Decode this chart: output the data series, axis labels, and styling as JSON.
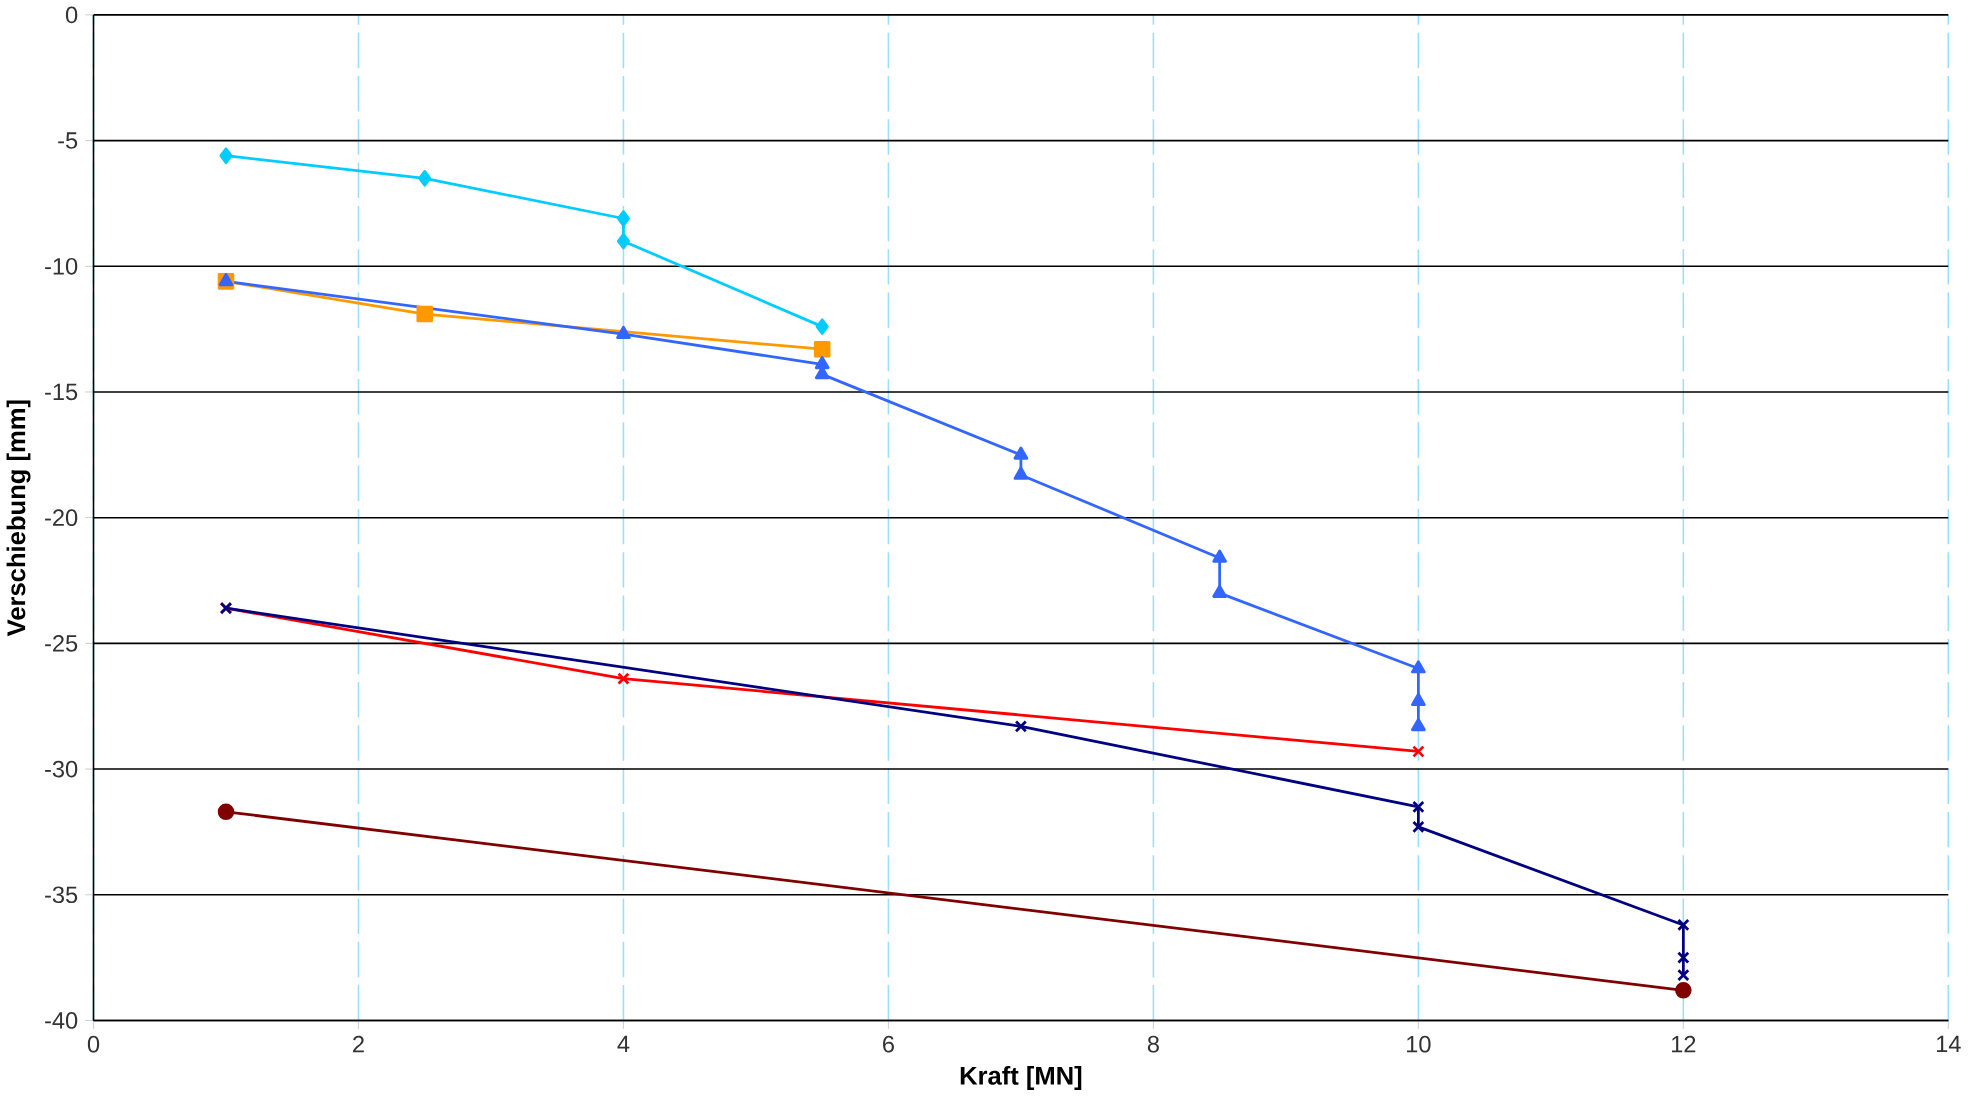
{
  "chart_data": {
    "type": "line",
    "xlabel": "Kraft [MN]",
    "ylabel": "Verschiebung [mm]",
    "xlim": [
      0,
      14
    ],
    "xticks": [
      0,
      2,
      4,
      6,
      8,
      10,
      12,
      14
    ],
    "ylim": [
      -40,
      0
    ],
    "yticks": [
      -40,
      -35,
      -30,
      -25,
      -20,
      -15,
      -10,
      -5,
      0
    ],
    "grid": true,
    "series": [
      {
        "color": "#00ccff",
        "marker": "diamond",
        "x": [
          1,
          2.5,
          4,
          4,
          5.5
        ],
        "values": [
          -5.6,
          -6.5,
          -8.1,
          -9.0,
          -12.4
        ]
      },
      {
        "color": "#ff9900",
        "marker": "square",
        "x": [
          1,
          2.5,
          5.5
        ],
        "values": [
          -10.6,
          -11.9,
          -13.3
        ]
      },
      {
        "color": "#3366ff",
        "marker": "triangle",
        "x": [
          1,
          4,
          5.5,
          5.5,
          7,
          7,
          8.5,
          8.5,
          10,
          10
        ],
        "values": [
          -10.6,
          -12.7,
          -13.9,
          -14.3,
          -17.5,
          -18.3,
          -21.6,
          -23.0,
          -26.0,
          -28.3
        ]
      },
      {
        "type": "scatter",
        "color": "#3366ff",
        "marker": "triangle",
        "x": [
          10
        ],
        "values": [
          -27.3
        ]
      },
      {
        "color": "#ff0000",
        "marker": "cross",
        "x": [
          1,
          4,
          10
        ],
        "values": [
          -23.6,
          -26.4,
          -29.3
        ]
      },
      {
        "color": "#000080",
        "marker": "cross",
        "x": [
          1,
          7,
          10,
          10,
          12,
          12
        ],
        "values": [
          -23.6,
          -28.3,
          -31.5,
          -32.3,
          -36.2,
          -38.2
        ]
      },
      {
        "type": "scatter",
        "color": "#000080",
        "marker": "cross",
        "x": [
          12
        ],
        "values": [
          -37.5
        ]
      },
      {
        "color": "#800000",
        "marker": "circle",
        "x": [
          1,
          12
        ],
        "values": [
          -31.7,
          -38.8
        ]
      }
    ]
  }
}
